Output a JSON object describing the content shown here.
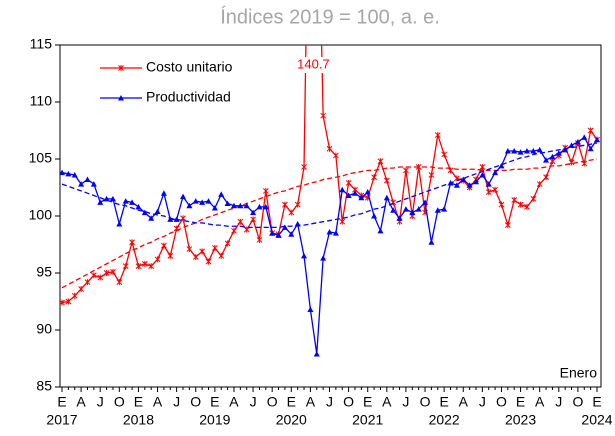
{
  "chart_data": {
    "type": "line",
    "title": "Índices 2019 = 100, a. e.",
    "annotation": "Enero",
    "categories": [
      "E",
      null,
      null,
      "A",
      null,
      null,
      "J",
      null,
      null,
      "O",
      null,
      null,
      "E",
      null,
      null,
      "A",
      null,
      null,
      "J",
      null,
      null,
      "O",
      null,
      null,
      "E",
      null,
      null,
      "A",
      null,
      null,
      "J",
      null,
      null,
      "O",
      null,
      null,
      "E",
      null,
      null,
      "A",
      null,
      null,
      "J",
      null,
      null,
      "O",
      null,
      null,
      "E",
      null,
      null,
      "A",
      null,
      null,
      "J",
      null,
      null,
      "O",
      null,
      null,
      "E",
      null,
      null,
      "A",
      null,
      null,
      "J",
      null,
      null,
      "O",
      null,
      null,
      "E",
      null,
      null,
      "A",
      null,
      null,
      "J",
      null,
      null,
      "O",
      null,
      null,
      "E"
    ],
    "years": [
      "2017",
      "2018",
      "2019",
      "2020",
      "2021",
      "2022",
      "2023",
      "2024"
    ],
    "ylim": [
      85,
      115
    ],
    "yticks": [
      85,
      90,
      95,
      100,
      105,
      110,
      115
    ],
    "grid": false,
    "legend": "top-left",
    "series": [
      {
        "name": "Costo unitario",
        "color": "#ff0000",
        "marker": "x",
        "values": [
          92.4,
          92.5,
          93.0,
          93.6,
          94.2,
          94.8,
          94.6,
          95.0,
          95.1,
          94.2,
          95.6,
          97.7,
          95.6,
          95.8,
          95.6,
          96.2,
          97.4,
          96.5,
          98.9,
          99.8,
          97.1,
          96.4,
          96.9,
          96.0,
          97.2,
          96.5,
          97.6,
          98.7,
          99.5,
          98.8,
          99.7,
          97.9,
          102.2,
          98.5,
          98.4,
          101.0,
          100.3,
          101.0,
          104.3,
          140.7,
          135.0,
          108.8,
          105.9,
          105.3,
          99.5,
          102.9,
          102.3,
          101.8,
          101.6,
          103.4,
          104.8,
          103.1,
          101.2,
          99.5,
          104.0,
          100.0,
          104.3,
          100.3,
          103.6,
          107.1,
          105.4,
          104.0,
          103.3,
          103.1,
          102.5,
          103.2,
          104.3,
          102.1,
          102.3,
          101.0,
          99.2,
          101.4,
          101.0,
          100.8,
          101.5,
          102.8,
          103.4,
          104.8,
          105.3,
          106.0,
          104.7,
          106.4,
          104.6,
          107.5,
          106.7
        ],
        "value_labels": [
          null,
          null,
          null,
          null,
          null,
          null,
          null,
          null,
          null,
          null,
          null,
          null,
          null,
          null,
          null,
          null,
          null,
          null,
          null,
          null,
          null,
          null,
          null,
          null,
          null,
          null,
          null,
          null,
          null,
          null,
          null,
          null,
          null,
          null,
          null,
          null,
          null,
          null,
          null,
          "140.7",
          null,
          null,
          null,
          null,
          null,
          null,
          null,
          null,
          null,
          null,
          null,
          null,
          null,
          null,
          null,
          null,
          null,
          null,
          null,
          null,
          null,
          null,
          null,
          null,
          null,
          null,
          null,
          null,
          null,
          null,
          null,
          null,
          null,
          null,
          null,
          null,
          null,
          null,
          null,
          null,
          null,
          null,
          null,
          null,
          null
        ],
        "trend": [
          93.7,
          94.0,
          94.3,
          94.6,
          94.9,
          95.2,
          95.5,
          95.8,
          96.1,
          96.4,
          96.7,
          97.0,
          97.2,
          97.5,
          97.7,
          98.0,
          98.2,
          98.5,
          98.7,
          99.0,
          99.2,
          99.4,
          99.7,
          99.9,
          100.1,
          100.3,
          100.5,
          100.7,
          100.9,
          101.1,
          101.3,
          101.5,
          101.7,
          101.9,
          102.1,
          102.2,
          102.4,
          102.6,
          102.7,
          102.9,
          103.0,
          103.2,
          103.3,
          103.4,
          103.5,
          103.7,
          103.8,
          103.9,
          104.0,
          104.0,
          104.1,
          104.2,
          104.2,
          104.3,
          104.3,
          104.3,
          104.3,
          104.3,
          104.3,
          104.2,
          104.2,
          104.2,
          104.1,
          104.1,
          104.1,
          104.1,
          104.0,
          104.0,
          104.0,
          104.0,
          104.0,
          104.1,
          104.1,
          104.1,
          104.2,
          104.2,
          104.3,
          104.4,
          104.4,
          104.5,
          104.6,
          104.7,
          104.8,
          104.9,
          105.0
        ]
      },
      {
        "name": "Productividad",
        "color": "#0000ff",
        "marker": "triangle",
        "values": [
          103.8,
          103.7,
          103.6,
          102.8,
          103.2,
          102.8,
          101.2,
          101.5,
          101.5,
          99.3,
          101.3,
          101.2,
          100.8,
          100.3,
          99.8,
          100.4,
          102.0,
          99.7,
          99.7,
          101.7,
          100.9,
          101.3,
          101.2,
          101.3,
          100.7,
          101.9,
          101.1,
          100.9,
          100.9,
          100.9,
          100.3,
          100.8,
          100.8,
          98.5,
          98.3,
          99.0,
          98.4,
          99.3,
          96.5,
          91.8,
          87.9,
          96.3,
          98.6,
          98.5,
          102.3,
          101.8,
          102.0,
          101.6,
          102.1,
          100.0,
          98.7,
          101.6,
          100.5,
          99.8,
          100.6,
          100.3,
          100.6,
          101.2,
          97.7,
          100.5,
          100.6,
          102.9,
          102.7,
          103.2,
          102.7,
          103.0,
          103.6,
          102.8,
          103.8,
          104.4,
          105.7,
          105.7,
          105.6,
          105.7,
          105.7,
          105.8,
          104.9,
          105.2,
          105.5,
          105.8,
          106.2,
          106.5,
          106.9,
          105.9,
          106.7
        ],
        "trend": [
          102.8,
          102.6,
          102.4,
          102.2,
          102.0,
          101.8,
          101.6,
          101.4,
          101.2,
          101.0,
          100.9,
          100.7,
          100.5,
          100.4,
          100.2,
          100.1,
          100.0,
          99.8,
          99.7,
          99.6,
          99.5,
          99.4,
          99.4,
          99.3,
          99.2,
          99.2,
          99.1,
          99.1,
          99.1,
          99.0,
          99.0,
          99.0,
          99.0,
          99.0,
          99.0,
          99.1,
          99.1,
          99.2,
          99.2,
          99.3,
          99.4,
          99.5,
          99.6,
          99.7,
          99.8,
          99.9,
          100.1,
          100.2,
          100.4,
          100.6,
          100.7,
          100.9,
          101.1,
          101.3,
          101.5,
          101.7,
          101.9,
          102.1,
          102.3,
          102.5,
          102.7,
          102.9,
          103.1,
          103.3,
          103.5,
          103.7,
          103.9,
          104.1,
          104.3,
          104.5,
          104.7,
          104.9,
          105.1,
          105.2,
          105.4,
          105.5,
          105.6,
          105.7,
          105.8,
          105.9,
          106.0,
          106.1,
          106.2,
          106.3,
          106.4
        ]
      }
    ]
  }
}
